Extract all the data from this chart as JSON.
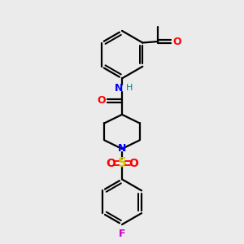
{
  "bg_color": "#ebebeb",
  "bond_color": "#000000",
  "N_color": "#0000ff",
  "O_color": "#ff0000",
  "S_color": "#cccc00",
  "F_color": "#cc00cc",
  "H_color": "#008080",
  "line_width": 1.6,
  "fig_width": 3.0,
  "fig_height": 3.0,
  "dpi": 100,
  "xlim": [
    0,
    10
  ],
  "ylim": [
    0,
    10
  ]
}
